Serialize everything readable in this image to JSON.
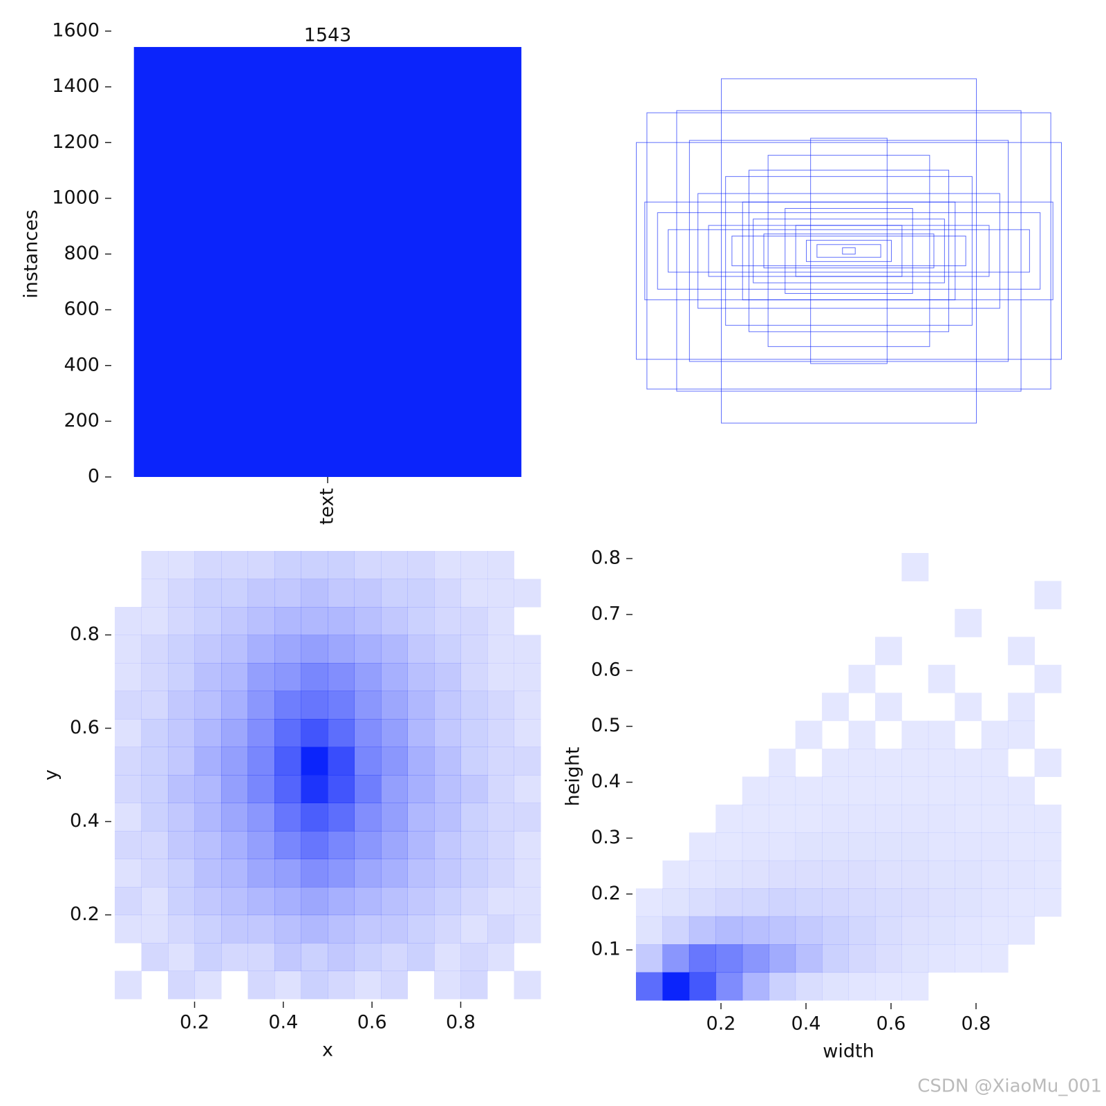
{
  "chart_data": [
    {
      "type": "bar",
      "categories": [
        "text"
      ],
      "values": [
        1543
      ],
      "color": "#0b24fb",
      "ylabel": "instances",
      "ylim": [
        0,
        1600
      ],
      "yticks": [
        0,
        200,
        400,
        600,
        800,
        1000,
        1200,
        1400,
        1600
      ]
    },
    {
      "type": "boxes",
      "color": "#0b24fb",
      "widths": [
        1.0,
        0.95,
        0.81,
        0.6,
        0.18,
        0.38,
        0.75,
        0.71,
        0.47,
        0.58,
        0.96,
        0.9,
        0.5,
        0.85,
        0.45,
        0.3,
        0.25,
        0.66,
        0.4,
        0.2,
        0.55,
        0.15,
        0.03
      ],
      "heights": [
        0.51,
        0.65,
        0.66,
        0.81,
        0.53,
        0.45,
        0.52,
        0.27,
        0.38,
        0.35,
        0.23,
        0.18,
        0.23,
        0.1,
        0.15,
        0.2,
        0.12,
        0.12,
        0.08,
        0.05,
        0.07,
        0.03,
        0.015
      ]
    },
    {
      "type": "hist2d",
      "color": "#0b24fb",
      "xlabel": "x",
      "ylabel": "y",
      "xlim": [
        0.02,
        0.98
      ],
      "ylim": [
        0.02,
        0.98
      ],
      "xbins": [
        0.02,
        0.08,
        0.14,
        0.2,
        0.26,
        0.32,
        0.38,
        0.44,
        0.5,
        0.56,
        0.62,
        0.68,
        0.74,
        0.8,
        0.86,
        0.92,
        0.98
      ],
      "ybins": [
        0.02,
        0.08,
        0.14,
        0.2,
        0.26,
        0.32,
        0.38,
        0.44,
        0.5,
        0.56,
        0.62,
        0.68,
        0.74,
        0.8,
        0.86,
        0.92,
        0.98
      ],
      "xticks": [
        0.2,
        0.4,
        0.6,
        0.8
      ],
      "yticks": [
        0.2,
        0.4,
        0.6,
        0.8
      ],
      "counts": [
        [
          1,
          0,
          2,
          1,
          0,
          2,
          1,
          3,
          2,
          1,
          2,
          0,
          1,
          2,
          0,
          1
        ],
        [
          0,
          2,
          1,
          3,
          2,
          2,
          4,
          3,
          4,
          3,
          2,
          3,
          1,
          2,
          1,
          0
        ],
        [
          1,
          1,
          2,
          3,
          4,
          4,
          5,
          6,
          5,
          4,
          4,
          3,
          2,
          1,
          2,
          1
        ],
        [
          2,
          1,
          3,
          4,
          5,
          6,
          7,
          8,
          7,
          6,
          5,
          4,
          3,
          2,
          1,
          1
        ],
        [
          1,
          2,
          3,
          5,
          6,
          8,
          9,
          11,
          10,
          8,
          7,
          5,
          4,
          3,
          2,
          1
        ],
        [
          2,
          2,
          4,
          5,
          7,
          9,
          12,
          14,
          12,
          10,
          8,
          6,
          4,
          3,
          2,
          1
        ],
        [
          1,
          3,
          4,
          6,
          8,
          10,
          14,
          17,
          15,
          11,
          9,
          6,
          5,
          3,
          2,
          2
        ],
        [
          2,
          3,
          5,
          6,
          9,
          12,
          16,
          22,
          18,
          13,
          9,
          7,
          5,
          4,
          2,
          1
        ],
        [
          2,
          3,
          4,
          7,
          9,
          12,
          17,
          24,
          19,
          12,
          10,
          7,
          5,
          3,
          2,
          2
        ],
        [
          1,
          3,
          4,
          6,
          8,
          11,
          15,
          18,
          15,
          11,
          9,
          6,
          4,
          3,
          2,
          1
        ],
        [
          2,
          2,
          4,
          5,
          7,
          10,
          13,
          14,
          13,
          10,
          8,
          6,
          4,
          3,
          2,
          1
        ],
        [
          1,
          2,
          3,
          5,
          6,
          9,
          10,
          12,
          11,
          9,
          7,
          5,
          4,
          2,
          1,
          1
        ],
        [
          1,
          2,
          3,
          4,
          5,
          7,
          8,
          9,
          8,
          7,
          6,
          4,
          3,
          2,
          1,
          1
        ],
        [
          1,
          1,
          2,
          3,
          4,
          5,
          6,
          6,
          6,
          5,
          4,
          3,
          2,
          2,
          1,
          0
        ],
        [
          0,
          1,
          2,
          3,
          3,
          4,
          4,
          5,
          4,
          4,
          3,
          3,
          2,
          1,
          1,
          1
        ],
        [
          0,
          1,
          1,
          2,
          2,
          2,
          3,
          3,
          3,
          2,
          2,
          2,
          1,
          1,
          1,
          0
        ]
      ]
    },
    {
      "type": "hist2d",
      "color": "#0b24fb",
      "xlabel": "width",
      "ylabel": "height",
      "xlim": [
        0,
        1
      ],
      "ylim": [
        0.01,
        0.81
      ],
      "xbins": [
        0,
        0.0625,
        0.125,
        0.1875,
        0.25,
        0.3125,
        0.375,
        0.4375,
        0.5,
        0.5625,
        0.625,
        0.6875,
        0.75,
        0.8125,
        0.875,
        0.9375,
        1
      ],
      "ybins": [
        0.01,
        0.06,
        0.11,
        0.16,
        0.21,
        0.26,
        0.31,
        0.36,
        0.41,
        0.46,
        0.51,
        0.56,
        0.61,
        0.66,
        0.71,
        0.76,
        0.81
      ],
      "xticks": [
        0.2,
        0.4,
        0.6,
        0.8
      ],
      "yticks": [
        0.1,
        0.2,
        0.3,
        0.4,
        0.5,
        0.6,
        0.7,
        0.8
      ],
      "counts": [
        [
          60,
          95,
          70,
          45,
          25,
          12,
          6,
          3,
          2,
          1,
          1,
          0,
          0,
          0,
          0,
          0
        ],
        [
          15,
          40,
          55,
          50,
          40,
          30,
          20,
          12,
          8,
          5,
          3,
          2,
          1,
          1,
          0,
          0
        ],
        [
          3,
          10,
          18,
          22,
          20,
          18,
          15,
          12,
          9,
          6,
          4,
          3,
          2,
          1,
          1,
          0
        ],
        [
          1,
          3,
          6,
          8,
          9,
          10,
          9,
          8,
          7,
          6,
          5,
          4,
          3,
          2,
          1,
          1
        ],
        [
          0,
          1,
          2,
          3,
          4,
          5,
          5,
          5,
          5,
          4,
          4,
          3,
          3,
          2,
          2,
          1
        ],
        [
          0,
          0,
          1,
          1,
          2,
          2,
          3,
          3,
          3,
          3,
          3,
          2,
          2,
          2,
          1,
          1
        ],
        [
          0,
          0,
          0,
          1,
          1,
          1,
          1,
          2,
          2,
          2,
          2,
          2,
          1,
          1,
          1,
          1
        ],
        [
          0,
          0,
          0,
          0,
          1,
          1,
          1,
          1,
          1,
          1,
          1,
          1,
          1,
          1,
          1,
          0
        ],
        [
          0,
          0,
          0,
          0,
          0,
          1,
          0,
          1,
          1,
          1,
          1,
          1,
          1,
          1,
          0,
          1
        ],
        [
          0,
          0,
          0,
          0,
          0,
          0,
          1,
          0,
          1,
          0,
          1,
          1,
          0,
          1,
          1,
          0
        ],
        [
          0,
          0,
          0,
          0,
          0,
          0,
          0,
          1,
          0,
          1,
          0,
          0,
          1,
          0,
          1,
          0
        ],
        [
          0,
          0,
          0,
          0,
          0,
          0,
          0,
          0,
          1,
          0,
          0,
          1,
          0,
          0,
          0,
          1
        ],
        [
          0,
          0,
          0,
          0,
          0,
          0,
          0,
          0,
          0,
          1,
          0,
          0,
          0,
          0,
          1,
          0
        ],
        [
          0,
          0,
          0,
          0,
          0,
          0,
          0,
          0,
          0,
          0,
          0,
          0,
          1,
          0,
          0,
          0
        ],
        [
          0,
          0,
          0,
          0,
          0,
          0,
          0,
          0,
          0,
          0,
          0,
          0,
          0,
          0,
          0,
          1
        ],
        [
          0,
          0,
          0,
          0,
          0,
          0,
          0,
          0,
          0,
          0,
          1,
          0,
          0,
          0,
          0,
          0
        ]
      ]
    }
  ],
  "watermark": "CSDN @XiaoMu_001"
}
